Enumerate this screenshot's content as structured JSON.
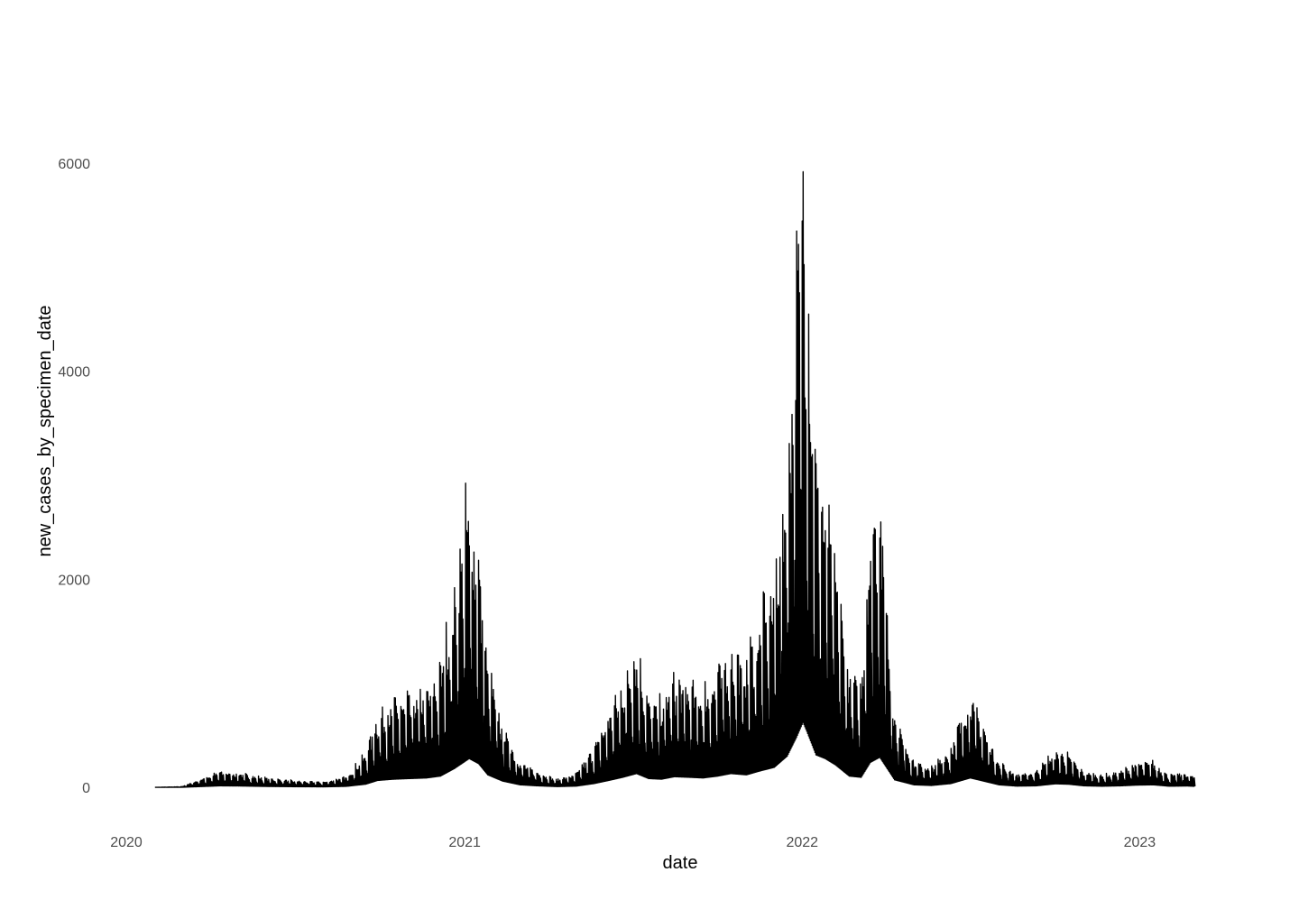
{
  "chart_data": {
    "type": "line",
    "title": "",
    "xlabel": "date",
    "ylabel": "new_cases_by_specimen_date",
    "x_ticks": [
      "2020",
      "2021",
      "2022",
      "2023"
    ],
    "y_ticks": [
      0,
      2000,
      4000,
      6000
    ],
    "xlim": [
      "2020-01-01",
      "2023-04-15"
    ],
    "ylim": [
      -320,
      6960
    ],
    "grid": false,
    "legend": "none",
    "line_color": "#000000",
    "series": [
      {
        "x": [
          "2020-02-01",
          "2020-03-01",
          "2020-03-20",
          "2020-04-10",
          "2020-05-01",
          "2020-06-01",
          "2020-07-01",
          "2020-08-01",
          "2020-08-25",
          "2020-09-15",
          "2020-09-28",
          "2020-10-15",
          "2020-11-01",
          "2020-11-20",
          "2020-12-05",
          "2020-12-20",
          "2020-12-30",
          "2021-01-05",
          "2021-01-15",
          "2021-01-25",
          "2021-02-10",
          "2021-03-01",
          "2021-03-20",
          "2021-04-10",
          "2021-05-01",
          "2021-05-20",
          "2021-06-05",
          "2021-06-20",
          "2021-07-05",
          "2021-07-18",
          "2021-08-01",
          "2021-08-15",
          "2021-09-01",
          "2021-09-15",
          "2021-10-01",
          "2021-10-15",
          "2021-11-01",
          "2021-11-15",
          "2021-12-01",
          "2021-12-15",
          "2021-12-25",
          "2022-01-01",
          "2022-01-05",
          "2022-01-15",
          "2022-01-25",
          "2022-02-05",
          "2022-02-20",
          "2022-03-05",
          "2022-03-15",
          "2022-03-25",
          "2022-04-10",
          "2022-05-01",
          "2022-05-20",
          "2022-06-10",
          "2022-07-01",
          "2022-07-15",
          "2022-08-01",
          "2022-08-20",
          "2022-09-10",
          "2022-10-01",
          "2022-10-15",
          "2022-11-01",
          "2022-11-20",
          "2022-12-10",
          "2022-12-28",
          "2023-01-15",
          "2023-02-01",
          "2023-02-20",
          "2023-03-01"
        ],
        "y": [
          0,
          5,
          60,
          120,
          110,
          70,
          50,
          40,
          80,
          250,
          550,
          650,
          700,
          750,
          900,
          1500,
          2000,
          2300,
          1900,
          1000,
          500,
          200,
          120,
          60,
          100,
          300,
          550,
          800,
          1100,
          700,
          650,
          850,
          800,
          750,
          900,
          1100,
          1000,
          1300,
          1600,
          2500,
          4000,
          5200,
          4500,
          2600,
          2300,
          1800,
          900,
          800,
          2000,
          2400,
          600,
          200,
          150,
          300,
          750,
          500,
          200,
          100,
          120,
          280,
          250,
          120,
          90,
          120,
          180,
          200,
          90,
          110,
          80
        ]
      }
    ]
  }
}
